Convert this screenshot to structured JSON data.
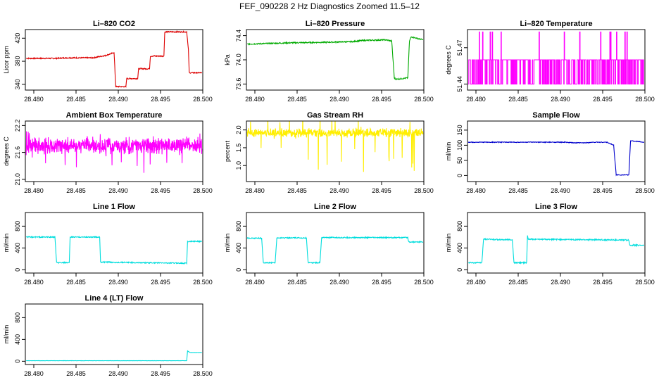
{
  "figure": {
    "title": "FEF_090228  2 Hz Diagnostics Zoomed 11.5–12"
  },
  "chart_data": [
    {
      "type": "line",
      "title": "Li–820 CO2",
      "ylabel": "Licor ppm",
      "color": "#dd0000",
      "xlim": [
        28.479,
        28.5
      ],
      "ylim": [
        330,
        435
      ],
      "xticks": [
        "28.480",
        "28.485",
        "28.490",
        "28.495",
        "28.500"
      ],
      "yticks": [
        "340",
        "380",
        "420"
      ],
      "x": [
        28.4791,
        28.4825,
        28.484,
        28.4855,
        28.487,
        28.4885,
        28.4895,
        28.4897,
        28.4909,
        28.491,
        28.4923,
        28.4924,
        28.4937,
        28.4938,
        28.4954,
        28.4955,
        28.4981,
        28.4983,
        28.4984,
        28.4999
      ],
      "y": [
        385,
        385,
        386,
        386,
        386,
        390,
        395,
        336,
        336,
        350,
        350,
        367,
        367,
        389,
        389,
        431,
        431,
        400,
        360,
        360
      ],
      "noise": 1
    },
    {
      "type": "line",
      "title": "Li–820 Pressure",
      "ylabel": "kPa",
      "color": "#00aa00",
      "xlim": [
        28.479,
        28.5
      ],
      "ylim": [
        73.5,
        74.5
      ],
      "xticks": [
        "28.480",
        "28.485",
        "28.490",
        "28.495",
        "28.500"
      ],
      "yticks": [
        "73.6",
        "74.0",
        "74.4"
      ],
      "x": [
        28.4791,
        28.484,
        28.4885,
        28.4915,
        28.4928,
        28.4955,
        28.4962,
        28.4965,
        28.4967,
        28.4981,
        28.4983,
        28.4985,
        28.4999
      ],
      "y": [
        74.26,
        74.28,
        74.29,
        74.3,
        74.32,
        74.33,
        74.31,
        73.7,
        73.68,
        73.7,
        74.31,
        74.38,
        74.33
      ],
      "noise": 0.01
    },
    {
      "type": "line",
      "title": "Li–820 Temperature",
      "ylabel": "degrees C",
      "color": "#ff00ff",
      "xlim": [
        28.479,
        28.5
      ],
      "ylim": [
        51.435,
        51.485
      ],
      "xticks": [
        "28.480",
        "28.485",
        "28.490",
        "28.495",
        "28.500"
      ],
      "yticks": [
        "51.44",
        "51.47"
      ],
      "render": "binary",
      "levels": [
        51.44,
        51.46
      ],
      "density": 0.55,
      "x": [],
      "y": []
    },
    {
      "type": "line",
      "title": "Ambient Box Temperature",
      "ylabel": "degrees C",
      "color": "#ff00ff",
      "xlim": [
        28.479,
        28.5
      ],
      "ylim": [
        20.95,
        22.3
      ],
      "xticks": [
        "28.480",
        "28.485",
        "28.490",
        "28.495",
        "28.500"
      ],
      "yticks": [
        "21.0",
        "21.6",
        "22.2"
      ],
      "render": "noise",
      "center": 21.75,
      "spread": 0.14,
      "spike": 0.55,
      "x": [],
      "y": []
    },
    {
      "type": "line",
      "title": "Gas Stream RH",
      "ylabel": "percent",
      "color": "#ffee00",
      "xlim": [
        28.479,
        28.5
      ],
      "ylim": [
        0.55,
        2.25
      ],
      "xticks": [
        "28.480",
        "28.485",
        "28.490",
        "28.495",
        "28.500"
      ],
      "yticks": [
        "1.0",
        "1.5",
        "2.0"
      ],
      "render": "noise",
      "center": 1.92,
      "spread": 0.09,
      "spike": 1.2,
      "x": [],
      "y": []
    },
    {
      "type": "line",
      "title": "Sample Flow",
      "ylabel": "ml/min",
      "color": "#0000cc",
      "xlim": [
        28.479,
        28.5
      ],
      "ylim": [
        -20,
        180
      ],
      "xticks": [
        "28.480",
        "28.485",
        "28.490",
        "28.495",
        "28.500"
      ],
      "yticks": [
        "0",
        "50",
        "100",
        "150"
      ],
      "x": [
        28.4791,
        28.485,
        28.4905,
        28.4915,
        28.4928,
        28.494,
        28.4955,
        28.4963,
        28.4966,
        28.4981,
        28.4983,
        28.4999
      ],
      "y": [
        110,
        110,
        110,
        108,
        108,
        110,
        110,
        100,
        2,
        2,
        115,
        110
      ],
      "noise": 1.2
    },
    {
      "type": "line",
      "title": "Line 1 Flow",
      "ylabel": "ml/min",
      "color": "#00dddd",
      "xlim": [
        28.479,
        28.5
      ],
      "ylim": [
        -60,
        1050
      ],
      "xticks": [
        "28.480",
        "28.485",
        "28.490",
        "28.495",
        "28.500"
      ],
      "yticks": [
        "0",
        "400",
        "800"
      ],
      "x": [
        28.4791,
        28.4825,
        28.4827,
        28.4842,
        28.4843,
        28.4878,
        28.4879,
        28.4981,
        28.4982,
        28.4999
      ],
      "y": [
        600,
        600,
        130,
        130,
        600,
        600,
        140,
        120,
        520,
        520
      ],
      "noise": 10
    },
    {
      "type": "line",
      "title": "Line 2 Flow",
      "ylabel": "ml/min",
      "color": "#00dddd",
      "xlim": [
        28.479,
        28.5
      ],
      "ylim": [
        -60,
        1050
      ],
      "xticks": [
        "28.480",
        "28.485",
        "28.490",
        "28.495",
        "28.500"
      ],
      "yticks": [
        "0",
        "400",
        "800"
      ],
      "x": [
        28.4791,
        28.4808,
        28.481,
        28.4824,
        28.4826,
        28.4861,
        28.4863,
        28.4877,
        28.4879,
        28.4981,
        28.4982,
        28.4999
      ],
      "y": [
        580,
        580,
        130,
        130,
        585,
        585,
        130,
        130,
        590,
        590,
        510,
        510
      ],
      "noise": 10
    },
    {
      "type": "line",
      "title": "Line 3 Flow",
      "ylabel": "ml/min",
      "color": "#00dddd",
      "xlim": [
        28.479,
        28.5
      ],
      "ylim": [
        -60,
        1050
      ],
      "xticks": [
        "28.480",
        "28.485",
        "28.490",
        "28.495",
        "28.500"
      ],
      "yticks": [
        "0",
        "400",
        "800"
      ],
      "x": [
        28.4791,
        28.4807,
        28.4809,
        28.4843,
        28.4845,
        28.486,
        28.4861,
        28.4862,
        28.4981,
        28.4982,
        28.4999
      ],
      "y": [
        130,
        130,
        560,
        550,
        130,
        130,
        620,
        560,
        545,
        450,
        450
      ],
      "noise": 12
    },
    {
      "type": "line",
      "title": "Line 4 (LT) Flow",
      "ylabel": "ml/min",
      "color": "#00dddd",
      "xlim": [
        28.479,
        28.5
      ],
      "ylim": [
        -60,
        1050
      ],
      "xticks": [
        "28.480",
        "28.485",
        "28.490",
        "28.495",
        "28.500"
      ],
      "yticks": [
        "0",
        "400",
        "800"
      ],
      "x": [
        28.4791,
        28.4981,
        28.4982,
        28.4985,
        28.4999
      ],
      "y": [
        10,
        10,
        190,
        160,
        160
      ],
      "noise": 2
    }
  ]
}
